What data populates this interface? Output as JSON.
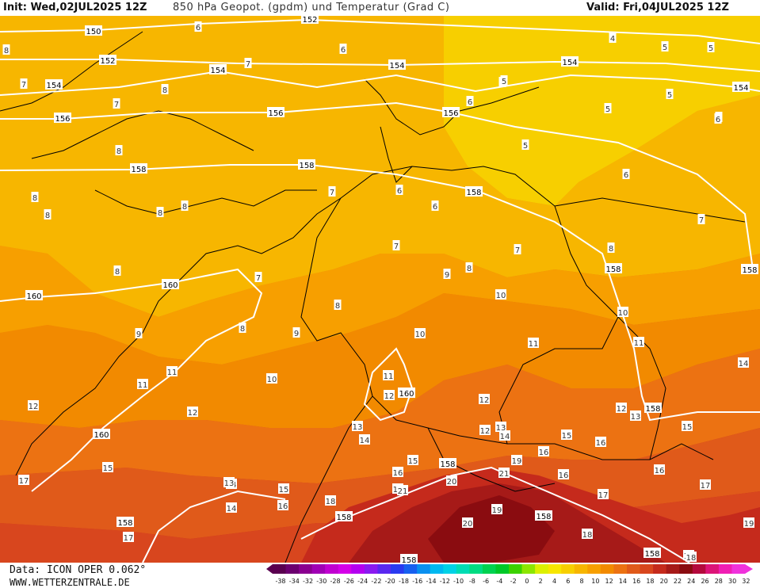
{
  "header": {
    "init": "Init: Wed,02JUL2025 12Z",
    "title": "850 hPa Geopot. (gpdm) und Temperatur (Grad C)",
    "valid": "Valid: Fri,04JUL2025 12Z"
  },
  "footer": {
    "source": "Data: ICON OPER 0.062°",
    "site": "WWW.WETTERZENTRALE.DE"
  },
  "colors": {
    "t4": "#f7cf00",
    "t6": "#f7b600",
    "t8": "#f79f00",
    "t10": "#f28a00",
    "t12": "#ec7212",
    "t14": "#e05a1a",
    "t16": "#d8461e",
    "t18": "#c52a1c",
    "t20": "#a61a18",
    "t22": "#8a0c10",
    "geopot_lines": "#ffffff",
    "borders": "#000000"
  },
  "legend": {
    "ticks": [
      "-38",
      "-34",
      "-32",
      "-30",
      "-28",
      "-26",
      "-24",
      "-22",
      "-20",
      "-18",
      "-16",
      "-14",
      "-12",
      "-10",
      "-8",
      "-6",
      "-4",
      "-2",
      "0",
      "2",
      "4",
      "6",
      "8",
      "10",
      "12",
      "14",
      "16",
      "18",
      "20",
      "22",
      "24",
      "26",
      "28",
      "30",
      "32"
    ],
    "colors": [
      "#5a0050",
      "#6c0070",
      "#8a0090",
      "#a000b4",
      "#c000d0",
      "#d400e8",
      "#b400f0",
      "#8a1af0",
      "#5a28f0",
      "#2a3af0",
      "#1860f0",
      "#0a90f0",
      "#00b8f0",
      "#00d2e6",
      "#00dcb4",
      "#00dc82",
      "#00d250",
      "#00c828",
      "#3cd200",
      "#8ce600",
      "#dcf000",
      "#f7e600",
      "#f7cf00",
      "#f7b600",
      "#f79f00",
      "#f28a00",
      "#ec7212",
      "#e05a1a",
      "#d8461e",
      "#c52a1c",
      "#a61a18",
      "#8a0c10",
      "#b40a3c",
      "#dc1478",
      "#f01eb4",
      "#f032dc"
    ]
  },
  "temperature_labels": [
    {
      "v": "6"
    },
    {
      "v": "6"
    },
    {
      "v": "8"
    },
    {
      "v": "4"
    },
    {
      "v": "5"
    },
    {
      "v": "5"
    },
    {
      "v": "6"
    },
    {
      "v": "7"
    },
    {
      "v": "7"
    },
    {
      "v": "6"
    },
    {
      "v": "6"
    },
    {
      "v": "5"
    },
    {
      "v": "5"
    },
    {
      "v": "5"
    },
    {
      "v": "8"
    },
    {
      "v": "7"
    },
    {
      "v": "6"
    },
    {
      "v": "5"
    },
    {
      "v": "6"
    },
    {
      "v": "8"
    },
    {
      "v": "6"
    },
    {
      "v": "8"
    },
    {
      "v": "8"
    },
    {
      "v": "8"
    },
    {
      "v": "7"
    },
    {
      "v": "6"
    },
    {
      "v": "7"
    },
    {
      "v": "8"
    },
    {
      "v": "8"
    },
    {
      "v": "7"
    },
    {
      "v": "7"
    },
    {
      "v": "7"
    },
    {
      "v": "8"
    },
    {
      "v": "8"
    },
    {
      "v": "9"
    },
    {
      "v": "9"
    },
    {
      "v": "8"
    },
    {
      "v": "9"
    },
    {
      "v": "8"
    },
    {
      "v": "10"
    },
    {
      "v": "10"
    },
    {
      "v": "10"
    },
    {
      "v": "10"
    },
    {
      "v": "11"
    },
    {
      "v": "11"
    },
    {
      "v": "11"
    },
    {
      "v": "11"
    },
    {
      "v": "11"
    },
    {
      "v": "12"
    },
    {
      "v": "12"
    },
    {
      "v": "12"
    },
    {
      "v": "12"
    },
    {
      "v": "12"
    },
    {
      "v": "12"
    },
    {
      "v": "13"
    },
    {
      "v": "13"
    },
    {
      "v": "13"
    },
    {
      "v": "14"
    },
    {
      "v": "14"
    },
    {
      "v": "14"
    },
    {
      "v": "15"
    },
    {
      "v": "15"
    },
    {
      "v": "15"
    },
    {
      "v": "16"
    },
    {
      "v": "16"
    },
    {
      "v": "16"
    },
    {
      "v": "16"
    },
    {
      "v": "17"
    },
    {
      "v": "17"
    },
    {
      "v": "17"
    },
    {
      "v": "18"
    },
    {
      "v": "18"
    },
    {
      "v": "19"
    },
    {
      "v": "20"
    },
    {
      "v": "20"
    },
    {
      "v": "21"
    },
    {
      "v": "21"
    },
    {
      "v": "19"
    },
    {
      "v": "18"
    },
    {
      "v": "14"
    },
    {
      "v": "19"
    },
    {
      "v": "18"
    },
    {
      "v": "17"
    },
    {
      "v": "15"
    },
    {
      "v": "16"
    },
    {
      "v": "13"
    },
    {
      "v": "14"
    },
    {
      "v": "15"
    },
    {
      "v": "16"
    },
    {
      "v": "17"
    },
    {
      "v": "18"
    }
  ],
  "geopotential_labels": [
    {
      "v": "150"
    },
    {
      "v": "152"
    },
    {
      "v": "152"
    },
    {
      "v": "154"
    },
    {
      "v": "154"
    },
    {
      "v": "154"
    },
    {
      "v": "154"
    },
    {
      "v": "154"
    },
    {
      "v": "156"
    },
    {
      "v": "156"
    },
    {
      "v": "156"
    },
    {
      "v": "158"
    },
    {
      "v": "158"
    },
    {
      "v": "158"
    },
    {
      "v": "158"
    },
    {
      "v": "158"
    },
    {
      "v": "160"
    },
    {
      "v": "160"
    },
    {
      "v": "160"
    },
    {
      "v": "160"
    },
    {
      "v": "158"
    },
    {
      "v": "158"
    },
    {
      "v": "158"
    },
    {
      "v": "158"
    },
    {
      "v": "158"
    },
    {
      "v": "158"
    },
    {
      "v": "158"
    }
  ]
}
